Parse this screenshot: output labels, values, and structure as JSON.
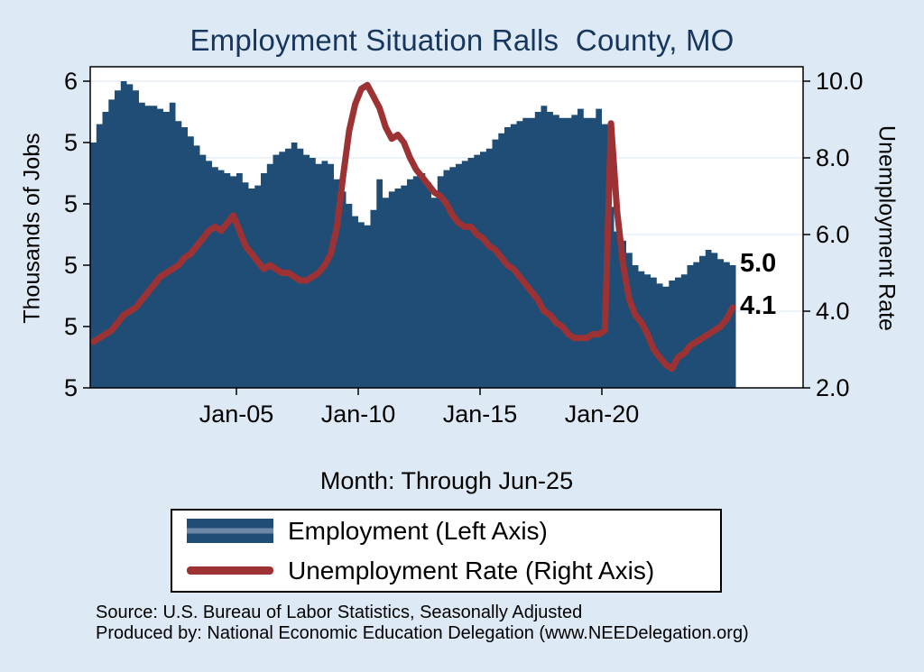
{
  "title": "Employment Situation Ralls  County, MO",
  "annotations": {
    "employment_last": "5.0",
    "unemployment_last": "4.1"
  },
  "legend": {
    "employment": "Employment (Left Axis)",
    "unemployment": "Unemployment Rate (Right Axis)"
  },
  "footer": {
    "source": "Source: U.S. Bureau of Labor Statistics, Seasonally Adjusted",
    "produced_by": "Produced by: National Economic Education Delegation (www.NEEDelegation.org)"
  },
  "chart_data": {
    "type": "area",
    "title": "Employment Situation Ralls  County, MO",
    "xlabel": "Month: Through Jun-25",
    "y_left_label": "Thousands of Jobs",
    "y_right_label": "Unemployment Rate",
    "x_start": 1999.0,
    "x_step": 0.25,
    "x_end_label": "Jun-25",
    "x_tick_years": [
      2005,
      2010,
      2015,
      2020
    ],
    "x_tick_labels": [
      "Jan-05",
      "Jan-10",
      "Jan-15",
      "Jan-20"
    ],
    "y_left_range": [
      4.6,
      5.6
    ],
    "y_left_ticks": [
      5.6,
      5.4,
      5.2,
      5.0,
      4.8,
      4.6
    ],
    "y_left_tick_labels": [
      "6",
      "5",
      "5",
      "5",
      "5",
      "5"
    ],
    "y_right_range": [
      2.0,
      10.0
    ],
    "y_right_ticks": [
      10.0,
      8.0,
      6.0,
      4.0,
      2.0
    ],
    "y_right_tick_labels": [
      "10.0",
      "8.0",
      "6.0",
      "4.0",
      "2.0"
    ],
    "grid": "horizontal",
    "legend_position": "bottom",
    "colors": {
      "employment_area": "#1f4d76",
      "unemployment_line": "#9c3234",
      "title": "#17365d",
      "background": "#dde9f4",
      "grid": "#d9e5f0"
    },
    "series": [
      {
        "name": "Employment (Left Axis)",
        "axis": "left",
        "type": "area",
        "color": "#1f4d76",
        "values": [
          5.4,
          5.46,
          5.5,
          5.54,
          5.57,
          5.6,
          5.59,
          5.57,
          5.53,
          5.52,
          5.52,
          5.51,
          5.5,
          5.53,
          5.47,
          5.45,
          5.42,
          5.39,
          5.36,
          5.34,
          5.32,
          5.31,
          5.3,
          5.29,
          5.3,
          5.27,
          5.25,
          5.26,
          5.3,
          5.33,
          5.36,
          5.37,
          5.38,
          5.4,
          5.38,
          5.36,
          5.35,
          5.33,
          5.34,
          5.33,
          5.28,
          5.24,
          5.2,
          5.16,
          5.14,
          5.13,
          5.18,
          5.28,
          5.22,
          5.24,
          5.25,
          5.26,
          5.28,
          5.29,
          5.3,
          5.27,
          5.22,
          5.29,
          5.31,
          5.32,
          5.33,
          5.34,
          5.35,
          5.36,
          5.37,
          5.38,
          5.41,
          5.43,
          5.45,
          5.46,
          5.47,
          5.48,
          5.48,
          5.5,
          5.52,
          5.5,
          5.49,
          5.48,
          5.48,
          5.49,
          5.51,
          5.48,
          5.48,
          5.51,
          5.46,
          5.19,
          5.11,
          5.08,
          5.04,
          5.0,
          4.98,
          4.97,
          4.96,
          4.94,
          4.93,
          4.95,
          4.96,
          4.97,
          5.0,
          5.01,
          5.03,
          5.05,
          5.04,
          5.02,
          5.01,
          5.0
        ]
      },
      {
        "name": "Unemployment Rate (Right Axis)",
        "axis": "right",
        "type": "line",
        "color": "#9c3234",
        "values": [
          3.2,
          3.3,
          3.4,
          3.5,
          3.7,
          3.9,
          4.0,
          4.1,
          4.3,
          4.5,
          4.7,
          4.9,
          5.0,
          5.1,
          5.2,
          5.4,
          5.5,
          5.7,
          5.9,
          6.1,
          6.2,
          6.1,
          6.3,
          6.5,
          6.1,
          5.7,
          5.5,
          5.3,
          5.1,
          5.2,
          5.1,
          5.0,
          5.0,
          4.9,
          4.8,
          4.8,
          4.9,
          5.0,
          5.2,
          5.5,
          6.2,
          7.5,
          8.7,
          9.4,
          9.8,
          9.9,
          9.6,
          9.3,
          8.8,
          8.5,
          8.6,
          8.4,
          8.0,
          7.7,
          7.5,
          7.3,
          7.1,
          7.0,
          6.8,
          6.5,
          6.3,
          6.2,
          6.2,
          6.0,
          5.9,
          5.7,
          5.6,
          5.4,
          5.2,
          5.1,
          4.9,
          4.7,
          4.5,
          4.3,
          4.0,
          3.9,
          3.7,
          3.6,
          3.4,
          3.3,
          3.3,
          3.3,
          3.4,
          3.4,
          3.5,
          8.9,
          6.6,
          5.2,
          4.3,
          3.9,
          3.7,
          3.4,
          3.0,
          2.8,
          2.6,
          2.5,
          2.8,
          2.9,
          3.1,
          3.2,
          3.3,
          3.4,
          3.5,
          3.6,
          3.8,
          4.1
        ]
      }
    ]
  }
}
